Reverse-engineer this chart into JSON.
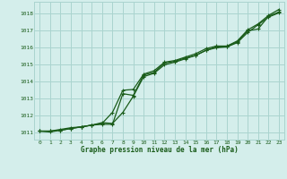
{
  "title": "Graphe pression niveau de la mer (hPa)",
  "bg_color": "#d4eeeb",
  "grid_color": "#aad4cf",
  "line_color": "#1a5c1a",
  "marker_color": "#1a5c1a",
  "xlim": [
    -0.5,
    23.5
  ],
  "ylim": [
    1010.6,
    1018.7
  ],
  "yticks": [
    1011,
    1012,
    1013,
    1014,
    1015,
    1016,
    1017,
    1018
  ],
  "xticks": [
    0,
    1,
    2,
    3,
    4,
    5,
    6,
    7,
    8,
    9,
    10,
    11,
    12,
    13,
    14,
    15,
    16,
    17,
    18,
    19,
    20,
    21,
    22,
    23
  ],
  "line1_x": [
    0,
    1,
    2,
    3,
    4,
    5,
    6,
    7,
    8,
    9,
    10,
    11,
    12,
    13,
    14,
    15,
    16,
    17,
    18,
    19,
    20,
    21,
    22,
    23
  ],
  "line1_y": [
    1011.1,
    1011.1,
    1011.2,
    1011.3,
    1011.35,
    1011.45,
    1011.5,
    1011.5,
    1013.3,
    1013.2,
    1014.4,
    1014.55,
    1015.1,
    1015.2,
    1015.4,
    1015.55,
    1015.85,
    1016.05,
    1016.05,
    1016.35,
    1017.0,
    1017.1,
    1017.85,
    1018.1
  ],
  "line2_x": [
    0,
    1,
    2,
    3,
    4,
    5,
    6,
    7,
    8,
    9,
    10,
    11,
    12,
    13,
    14,
    15,
    16,
    17,
    18,
    19,
    20,
    21,
    22,
    23
  ],
  "line2_y": [
    1011.1,
    1011.05,
    1011.15,
    1011.25,
    1011.35,
    1011.45,
    1011.55,
    1012.2,
    1013.5,
    1013.55,
    1014.45,
    1014.65,
    1015.15,
    1015.25,
    1015.45,
    1015.65,
    1015.95,
    1016.1,
    1016.1,
    1016.4,
    1017.05,
    1017.4,
    1017.9,
    1018.25
  ],
  "line3_x": [
    0,
    1,
    2,
    3,
    4,
    5,
    6,
    7,
    8,
    9,
    10,
    11,
    12,
    13,
    14,
    15,
    16,
    17,
    18,
    19,
    20,
    21,
    22,
    23
  ],
  "line3_y": [
    1011.1,
    1011.1,
    1011.15,
    1011.25,
    1011.35,
    1011.45,
    1011.6,
    1011.55,
    1012.2,
    1013.15,
    1014.3,
    1014.5,
    1015.0,
    1015.15,
    1015.35,
    1015.55,
    1015.85,
    1016.0,
    1016.05,
    1016.3,
    1016.9,
    1017.35,
    1017.8,
    1018.05
  ]
}
